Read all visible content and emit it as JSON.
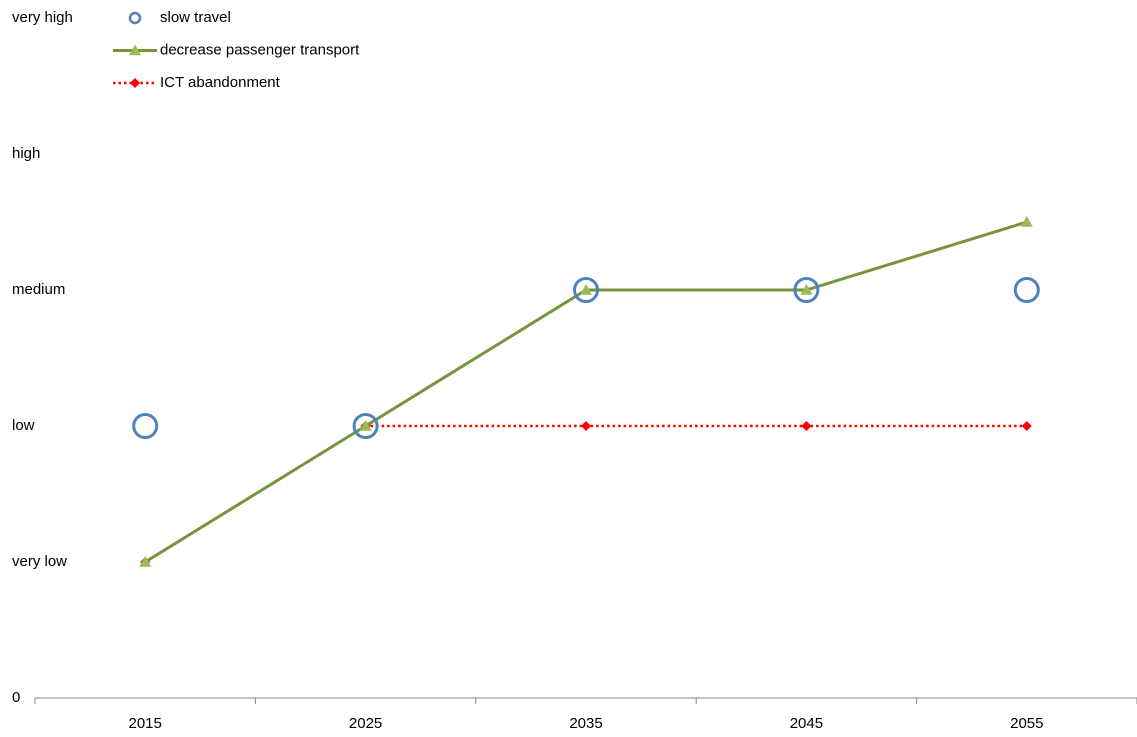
{
  "chart_data": {
    "type": "line",
    "categories": [
      "2015",
      "2025",
      "2035",
      "2045",
      "2055"
    ],
    "series": [
      {
        "name": "slow travel",
        "color": "#4f81bd",
        "marker": "circle",
        "line": "none",
        "values": [
          2,
          2,
          3,
          3,
          3
        ]
      },
      {
        "name": "decrease passenger transport",
        "color": "#77933c",
        "marker_color": "#9bbb59",
        "marker": "triangle",
        "line": "solid",
        "values": [
          1,
          2,
          3,
          3,
          3.5
        ]
      },
      {
        "name": "ICT abandonment",
        "color": "#ff0000",
        "marker": "diamond",
        "line": "dotted",
        "values": [
          1,
          2,
          2,
          2,
          2
        ]
      }
    ],
    "ylim": [
      0,
      5
    ],
    "yticks": [
      0,
      {
        "value": 1,
        "label": "very low"
      },
      {
        "value": 2,
        "label": "low"
      },
      {
        "value": 3,
        "label": "medium"
      },
      {
        "value": 4,
        "label": "high"
      },
      {
        "value": 5,
        "label": "very high"
      }
    ],
    "grid": false,
    "legend": "top-left"
  }
}
